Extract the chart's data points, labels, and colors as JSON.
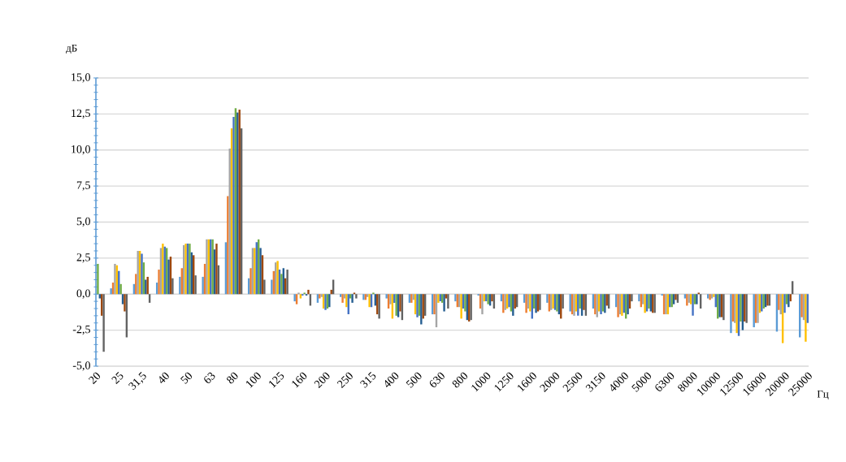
{
  "chart_data": {
    "type": "bar",
    "xlabel": "Гц",
    "ylabel": "дБ",
    "categories": [
      "20",
      "25",
      "31,5",
      "40",
      "50",
      "63",
      "80",
      "100",
      "125",
      "160",
      "200",
      "250",
      "315",
      "400",
      "500",
      "630",
      "800",
      "1000",
      "1250",
      "1600",
      "2000",
      "2500",
      "3150",
      "4000",
      "5000",
      "6300",
      "8000",
      "10000",
      "12500",
      "16000",
      "20000",
      "25000"
    ],
    "ylim": [
      -5,
      15
    ],
    "yticks": [
      {
        "value": -5,
        "label": "-5,0"
      },
      {
        "value": -2.5,
        "label": "-2,5"
      },
      {
        "value": 0,
        "label": "0,0"
      },
      {
        "value": 2.5,
        "label": "2,5"
      },
      {
        "value": 5,
        "label": "5,0"
      },
      {
        "value": 7.5,
        "label": "7,5"
      },
      {
        "value": 10,
        "label": "10,0"
      },
      {
        "value": 12.5,
        "label": "12,5"
      },
      {
        "value": 15,
        "label": "15,0"
      }
    ],
    "grid": "y",
    "series": [
      {
        "color": "#5b9bd5",
        "values": [
          null,
          0.4,
          0.7,
          0.8,
          1.2,
          1.2,
          3.6,
          1.1,
          1.0,
          -0.5,
          -0.6,
          -0.2,
          -0.4,
          -0.3,
          -0.6,
          -1.4,
          -0.5,
          -0.1,
          -0.5,
          -0.6,
          -0.6,
          -1.2,
          -1.0,
          -0.9,
          -0.5,
          -0.1,
          -0.3,
          -0.3,
          -2.7,
          -2.3,
          -2.6,
          -3.0
        ]
      },
      {
        "color": "#ed7d31",
        "values": [
          null,
          0.8,
          1.4,
          1.7,
          1.8,
          2.1,
          6.8,
          1.8,
          1.6,
          -0.7,
          -0.3,
          -0.6,
          -0.4,
          -1.0,
          -0.6,
          -1.4,
          -0.9,
          -1.0,
          -1.3,
          -1.3,
          -1.2,
          -1.4,
          -1.4,
          -1.6,
          -0.9,
          -1.4,
          -0.8,
          -0.4,
          -1.9,
          -2.0,
          -1.1,
          -1.6
        ]
      },
      {
        "color": "#a5a5a5",
        "values": [
          null,
          2.1,
          3.0,
          3.2,
          3.4,
          3.8,
          10.1,
          3.2,
          2.2,
          0.1,
          -0.2,
          -0.3,
          -0.2,
          -0.7,
          -0.4,
          -2.3,
          -0.9,
          -1.4,
          -1.1,
          -1.0,
          -1.1,
          -1.5,
          -1.6,
          -1.4,
          -0.7,
          -1.4,
          -0.6,
          -0.3,
          -2.0,
          -2.0,
          -1.4,
          -1.8
        ]
      },
      {
        "color": "#ffc000",
        "values": [
          null,
          2.0,
          3.0,
          3.5,
          3.5,
          3.8,
          11.5,
          3.2,
          2.3,
          -0.3,
          -1.0,
          -0.9,
          -0.9,
          -1.7,
          -1.4,
          -0.6,
          -1.7,
          -0.5,
          -1.0,
          -1.2,
          -1.0,
          -1.2,
          -1.2,
          -1.5,
          -1.3,
          -1.4,
          -0.7,
          -0.2,
          -2.7,
          -1.3,
          -3.4,
          -3.3
        ]
      },
      {
        "color": "#4472c4",
        "values": [
          null,
          1.6,
          2.8,
          3.3,
          3.5,
          3.8,
          12.3,
          3.6,
          1.7,
          -0.1,
          -1.1,
          -1.4,
          -0.9,
          -0.6,
          -1.6,
          -0.5,
          -1.0,
          -0.5,
          -0.9,
          -1.7,
          -1.1,
          -1.5,
          -1.4,
          -1.3,
          -1.2,
          -0.9,
          -1.5,
          -0.9,
          -2.9,
          -1.2,
          -1.3,
          -2.0
        ]
      },
      {
        "color": "#70ad47",
        "values": [
          2.1,
          0.7,
          2.2,
          3.2,
          3.5,
          3.8,
          12.9,
          3.8,
          1.4,
          0.1,
          -1.0,
          -0.3,
          0.1,
          -1.5,
          -1.5,
          -0.6,
          -1.2,
          -0.7,
          -1.2,
          -1.0,
          -1.2,
          -1.0,
          -1.2,
          -1.7,
          -1.0,
          -0.9,
          -0.7,
          -1.7,
          -1.9,
          -1.0,
          -0.7,
          null
        ]
      },
      {
        "color": "#255e91",
        "values": [
          -0.3,
          -0.7,
          1.0,
          2.4,
          2.9,
          3.1,
          12.6,
          3.2,
          1.8,
          -0.1,
          -0.9,
          -0.6,
          -0.8,
          -1.6,
          -2.1,
          -1.2,
          -1.8,
          -0.8,
          -1.5,
          -1.3,
          -1.4,
          -1.5,
          -1.3,
          -1.4,
          -1.2,
          -0.7,
          -0.7,
          -1.6,
          -2.5,
          -0.9,
          -0.9,
          null
        ]
      },
      {
        "color": "#9e480e",
        "values": [
          -1.5,
          -1.2,
          1.2,
          2.6,
          2.7,
          3.5,
          12.8,
          2.7,
          1.1,
          0.3,
          0.3,
          0.1,
          -1.4,
          -1.2,
          -1.7,
          -0.3,
          -1.9,
          -0.5,
          -1.0,
          -1.2,
          -1.7,
          -1.1,
          -0.8,
          -1.0,
          -1.3,
          -0.4,
          0.1,
          -1.6,
          -1.9,
          -0.8,
          -0.5,
          null
        ]
      },
      {
        "color": "#636363",
        "values": [
          -4.0,
          -3.0,
          -0.6,
          1.1,
          1.3,
          2.0,
          11.5,
          1.0,
          1.7,
          -0.8,
          1.0,
          -0.3,
          -1.7,
          -1.8,
          -1.5,
          -1.0,
          -1.8,
          -1.0,
          -0.9,
          -1.1,
          -1.0,
          -1.5,
          -1.0,
          -0.5,
          -1.3,
          -0.6,
          -1.0,
          -1.8,
          -2.0,
          -0.8,
          0.9,
          null
        ]
      }
    ]
  }
}
